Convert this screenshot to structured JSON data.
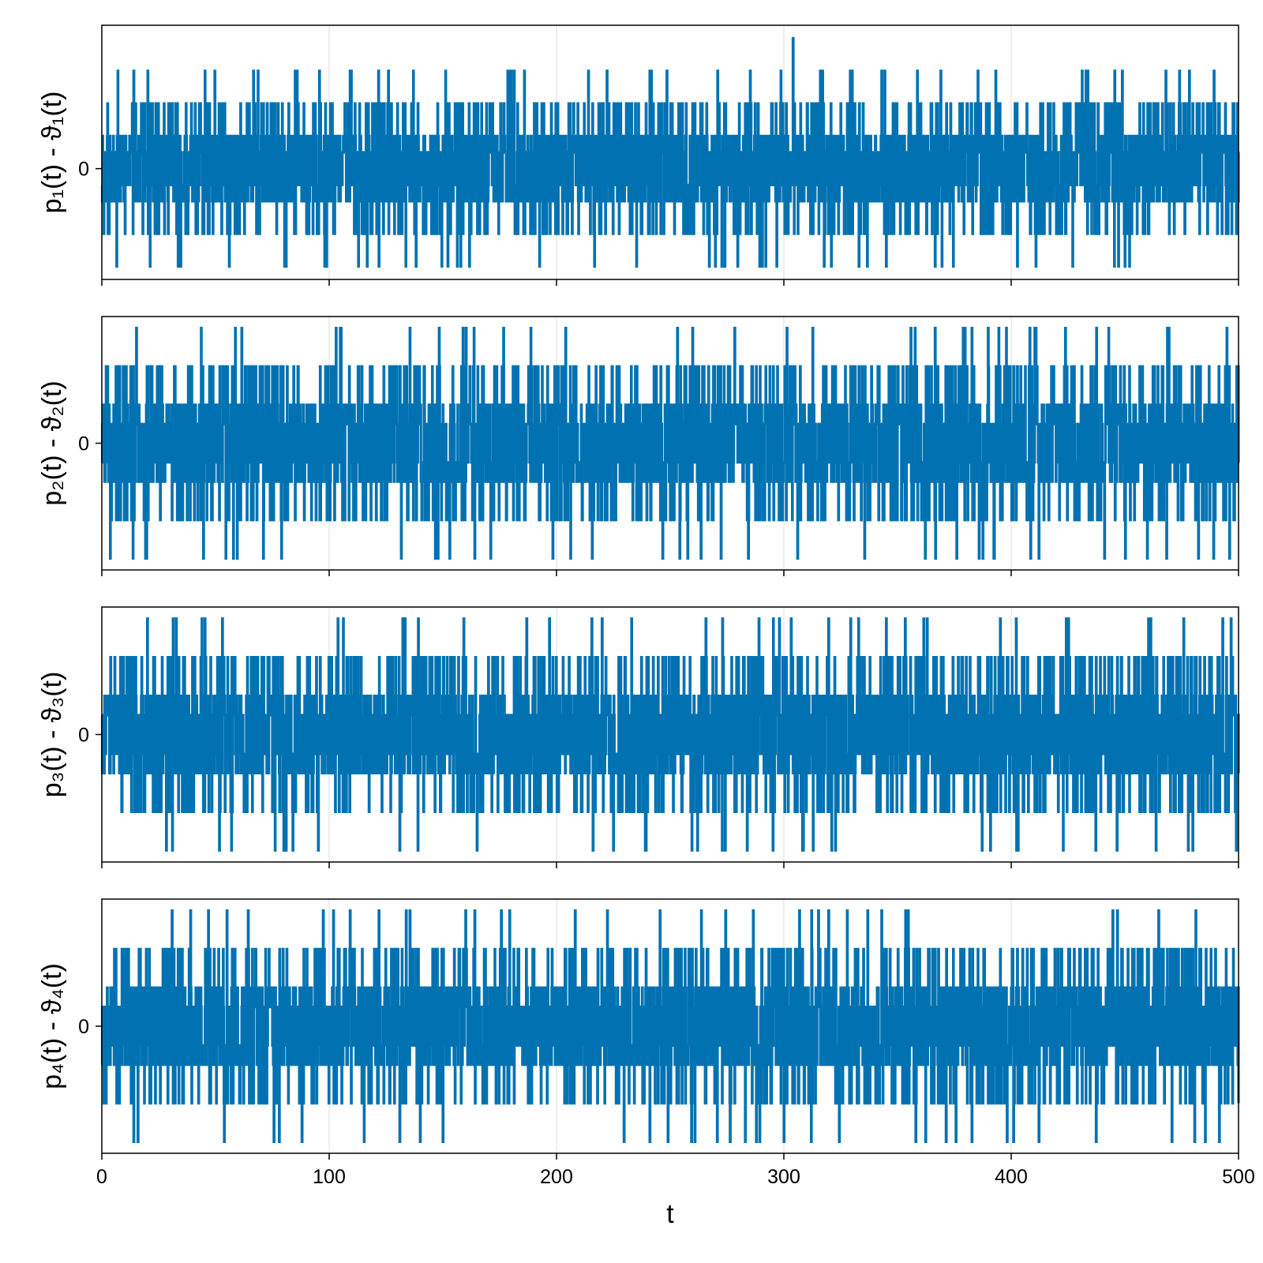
{
  "chart_data": [
    {
      "type": "line",
      "ylabel": "p₁(t) - ϑ₁(t)",
      "xlim": [
        0,
        500
      ],
      "ylim": [
        -3.4,
        4.4
      ],
      "yticks": [
        0
      ],
      "ytick_labels": [
        "0"
      ],
      "grid": true,
      "color": "#0072b2",
      "levels": [
        -3,
        -2,
        -1,
        -0.5,
        0.5,
        1,
        2,
        3,
        4
      ],
      "spikes": [
        {
          "t": 56,
          "y": -3
        },
        {
          "t": 85,
          "y": 3
        },
        {
          "t": 98,
          "y": -3
        },
        {
          "t": 214,
          "y": 3
        },
        {
          "t": 274,
          "y": -3
        },
        {
          "t": 292,
          "y": -3
        },
        {
          "t": 304,
          "y": 4
        },
        {
          "t": 316,
          "y": 3
        },
        {
          "t": 333,
          "y": -3
        },
        {
          "t": 345,
          "y": -3
        },
        {
          "t": 369,
          "y": 3
        },
        {
          "t": 369.5,
          "y": -3
        },
        {
          "t": 427,
          "y": -3
        },
        {
          "t": 450,
          "y": -3
        },
        {
          "t": 468,
          "y": 3
        },
        {
          "t": 474,
          "y": 3
        }
      ],
      "seed": 11
    },
    {
      "type": "line",
      "ylabel": "p₂(t) - ϑ₂(t)",
      "xlim": [
        0,
        500
      ],
      "ylim": [
        -3.3,
        3.3
      ],
      "yticks": [
        0
      ],
      "ytick_labels": [
        "0"
      ],
      "grid": true,
      "color": "#0072b2",
      "levels": [
        -3,
        -2,
        -1,
        -0.5,
        0.5,
        1,
        2,
        3
      ],
      "spikes": [
        {
          "t": 71,
          "y": -3
        },
        {
          "t": 153,
          "y": -3
        },
        {
          "t": 171,
          "y": -3
        },
        {
          "t": 376,
          "y": -3
        },
        {
          "t": 441,
          "y": -3
        },
        {
          "t": 489,
          "y": -3
        }
      ],
      "seed": 23
    },
    {
      "type": "line",
      "ylabel": "p₃(t) - ϑ₃(t)",
      "xlim": [
        0,
        500
      ],
      "ylim": [
        -3.3,
        3.3
      ],
      "yticks": [
        0
      ],
      "ytick_labels": [
        "0"
      ],
      "grid": true,
      "color": "#0072b2",
      "levels": [
        -3,
        -2,
        -1,
        -0.5,
        0.5,
        1,
        2,
        3
      ],
      "spikes": [
        {
          "t": 20,
          "y": 3
        },
        {
          "t": 31,
          "y": -3
        },
        {
          "t": 44,
          "y": 3
        },
        {
          "t": 80,
          "y": -3
        },
        {
          "t": 131,
          "y": -3
        },
        {
          "t": 139,
          "y": -3
        },
        {
          "t": 233,
          "y": 3
        },
        {
          "t": 239,
          "y": -3
        },
        {
          "t": 298,
          "y": 3
        },
        {
          "t": 321,
          "y": -3
        },
        {
          "t": 403,
          "y": -3
        },
        {
          "t": 499,
          "y": -3
        }
      ],
      "seed": 37
    },
    {
      "type": "line",
      "ylabel": "p₄(t) - ϑ₄(t)",
      "xlabel": "t",
      "xlim": [
        0,
        500
      ],
      "ylim": [
        -3.3,
        3.3
      ],
      "yticks": [
        0
      ],
      "ytick_labels": [
        "0"
      ],
      "xticks": [
        0,
        100,
        200,
        300,
        400,
        500
      ],
      "xtick_labels": [
        "0",
        "100",
        "200",
        "300",
        "400",
        "500"
      ],
      "grid": true,
      "color": "#0072b2",
      "levels": [
        -3,
        -2,
        -1,
        -0.5,
        0.5,
        1,
        2,
        3
      ],
      "spikes": [
        {
          "t": 78,
          "y": -3
        },
        {
          "t": 241,
          "y": -3
        },
        {
          "t": 249,
          "y": -3
        },
        {
          "t": 283,
          "y": -3
        },
        {
          "t": 300,
          "y": -3
        },
        {
          "t": 312,
          "y": -3
        }
      ],
      "seed": 53
    }
  ]
}
